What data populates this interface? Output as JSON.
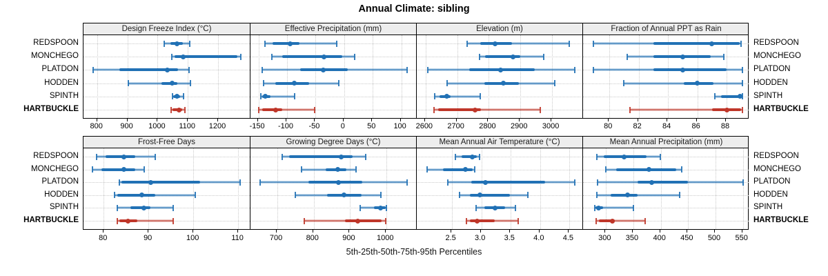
{
  "title": "Annual Climate: sibling",
  "caption": "5th-25th-50th-75th-95th Percentiles",
  "sites": [
    "REDSPOON",
    "MONCHEGO",
    "PLATDON",
    "HODDEN",
    "SPINTH",
    "HARTBUCKLE"
  ],
  "highlight_site": "HARTBUCKLE",
  "colors": {
    "series_blue": "#2171b5",
    "highlight_red": "#bf3629",
    "grid": "#c9c9c9",
    "strip_bg": "#ededed",
    "panel_border": "#000000"
  },
  "chart_data": {
    "type": "percentile-interval-dotplot",
    "title": "Annual Climate: sibling",
    "caption": "5th-25th-50th-75th-95th Percentiles",
    "percentiles": [
      5,
      25,
      50,
      75,
      95
    ],
    "categories": [
      "REDSPOON",
      "MONCHEGO",
      "PLATDON",
      "HODDEN",
      "SPINTH",
      "HARTBUCKLE"
    ],
    "highlight": "HARTBUCKLE",
    "layout": "2 rows x 4 columns, free x scales, grid on, strip titles top, site labels on both sides",
    "panels": [
      {
        "title": "Design Freeze Index (°C)",
        "grid_row": 0,
        "grid_col": 0,
        "xlim": [
          755,
          1305
        ],
        "tick_values": [
          800,
          900,
          1000,
          1100,
          1200
        ],
        "tick_labels": [
          "800",
          "900",
          "1000",
          "1100",
          "1200"
        ],
        "series": [
          [
            1022,
            1043,
            1065,
            1084,
            1107
          ],
          [
            1048,
            1056,
            1084,
            1264,
            1275
          ],
          [
            787,
            873,
            1033,
            1068,
            1104
          ],
          [
            903,
            1014,
            1048,
            1065,
            1108
          ],
          [
            1049,
            1051,
            1064,
            1075,
            1085
          ],
          [
            1045,
            1050,
            1070,
            1081,
            1090
          ]
        ]
      },
      {
        "title": "Effective Precipitation (mm)",
        "grid_row": 0,
        "grid_col": 1,
        "xlim": [
          -164,
          127
        ],
        "tick_values": [
          -150,
          -100,
          -50,
          0,
          50,
          100
        ],
        "tick_labels": [
          "-150",
          "-100",
          "-50",
          "0",
          "50",
          "100"
        ],
        "series": [
          [
            -139,
            -125,
            -95,
            -78,
            -13
          ],
          [
            -126,
            -108,
            -36,
            -4,
            18
          ],
          [
            -143,
            -77,
            -37,
            6,
            110
          ],
          [
            -141,
            -120,
            -87,
            -61,
            -9
          ],
          [
            -146,
            -144,
            -138,
            -129,
            -87
          ],
          [
            -150,
            -143,
            -120,
            -108,
            -52
          ]
        ]
      },
      {
        "title": "Elevation (m)",
        "grid_row": 0,
        "grid_col": 2,
        "xlim": [
          2572,
          3098
        ],
        "tick_values": [
          2600,
          2700,
          2800,
          2900,
          3000
        ],
        "tick_labels": [
          "2600",
          "2700",
          "2800",
          "2900",
          "3000"
        ],
        "series": [
          [
            2731,
            2773,
            2820,
            2873,
            3055
          ],
          [
            2771,
            2787,
            2877,
            2899,
            2974
          ],
          [
            2607,
            2738,
            2838,
            2946,
            3071
          ],
          [
            2669,
            2786,
            2845,
            2895,
            3008
          ],
          [
            2629,
            2644,
            2667,
            2680,
            2773
          ],
          [
            2627,
            2640,
            2757,
            2775,
            2962
          ]
        ]
      },
      {
        "title": "Fraction of Annual PPT as Rain",
        "grid_row": 0,
        "grid_col": 3,
        "xlim": [
          78.2,
          89.6
        ],
        "tick_values": [
          80,
          82,
          84,
          86,
          88
        ],
        "tick_labels": [
          "80",
          "82",
          "84",
          "86",
          "88"
        ],
        "series": [
          [
            78.9,
            83.0,
            87.0,
            88.9,
            89.0
          ],
          [
            81.2,
            83.0,
            85.0,
            86.9,
            87.8
          ],
          [
            78.9,
            83.0,
            85.0,
            88.0,
            89.1
          ],
          [
            81.0,
            85.1,
            86.0,
            87.1,
            89.1
          ],
          [
            87.2,
            87.6,
            88.9,
            89.0,
            89.1
          ],
          [
            81.4,
            87.0,
            88.0,
            89.0,
            89.1
          ]
        ]
      },
      {
        "title": "Frost-Free Days",
        "grid_row": 1,
        "grid_col": 0,
        "xlim": [
          75.5,
          112.6
        ],
        "tick_values": [
          80,
          90,
          100,
          110
        ],
        "tick_labels": [
          "80",
          "90",
          "100",
          "110"
        ],
        "series": [
          [
            78.5,
            80.5,
            84.5,
            87,
            91.5
          ],
          [
            77.5,
            79.5,
            84.5,
            87,
            89
          ],
          [
            83.5,
            84,
            90.5,
            101.5,
            110.5
          ],
          [
            82.5,
            83,
            88.5,
            91.5,
            100.5
          ],
          [
            83,
            86,
            89,
            90.5,
            95.5
          ],
          [
            83,
            83.5,
            85.5,
            87.5,
            95.5
          ]
        ]
      },
      {
        "title": "Growing Degree Days (°C)",
        "grid_row": 1,
        "grid_col": 1,
        "xlim": [
          626,
          1083
        ],
        "tick_values": [
          700,
          800,
          900,
          1000
        ],
        "tick_labels": [
          "700",
          "800",
          "900",
          "1000"
        ],
        "series": [
          [
            714,
            733,
            876,
            907,
            943
          ],
          [
            766,
            833,
            866,
            890,
            917
          ],
          [
            653,
            785,
            867,
            934,
            1057
          ],
          [
            750,
            836,
            882,
            931,
            984
          ],
          [
            927,
            965,
            984,
            997,
            1000
          ],
          [
            774,
            886,
            920,
            987,
            998
          ]
        ]
      },
      {
        "title": "Mean Annual Air Temperature (°C)",
        "grid_row": 1,
        "grid_col": 2,
        "xlim": [
          1.9,
          4.73
        ],
        "tick_values": [
          2.5,
          3.0,
          3.5,
          4.0,
          4.5
        ],
        "tick_labels": [
          "2.5",
          "3.0",
          "3.5",
          "4.0",
          "4.5"
        ],
        "series": [
          [
            2.56,
            2.66,
            2.84,
            2.92,
            2.97
          ],
          [
            2.08,
            2.35,
            2.73,
            2.85,
            2.89
          ],
          [
            2.43,
            2.83,
            3.07,
            4.09,
            4.59
          ],
          [
            2.63,
            2.81,
            2.98,
            3.48,
            3.79
          ],
          [
            2.91,
            3.05,
            3.23,
            3.4,
            3.58
          ],
          [
            2.75,
            2.81,
            2.93,
            3.23,
            3.63
          ]
        ]
      },
      {
        "title": "Mean Annual Precipitation (mm)",
        "grid_row": 1,
        "grid_col": 3,
        "xlim": [
          258,
          563
        ],
        "tick_values": [
          300,
          350,
          400,
          450,
          500,
          550
        ],
        "tick_labels": [
          "300",
          "350",
          "400",
          "450",
          "500",
          "550"
        ],
        "series": [
          [
            283,
            296,
            333,
            374,
            399
          ],
          [
            299,
            318,
            378,
            428,
            438
          ],
          [
            284,
            357,
            383,
            449,
            551
          ],
          [
            283,
            308,
            339,
            357,
            434
          ],
          [
            280,
            281,
            286,
            294,
            350
          ],
          [
            282,
            287,
            312,
            316,
            371
          ]
        ]
      }
    ]
  }
}
